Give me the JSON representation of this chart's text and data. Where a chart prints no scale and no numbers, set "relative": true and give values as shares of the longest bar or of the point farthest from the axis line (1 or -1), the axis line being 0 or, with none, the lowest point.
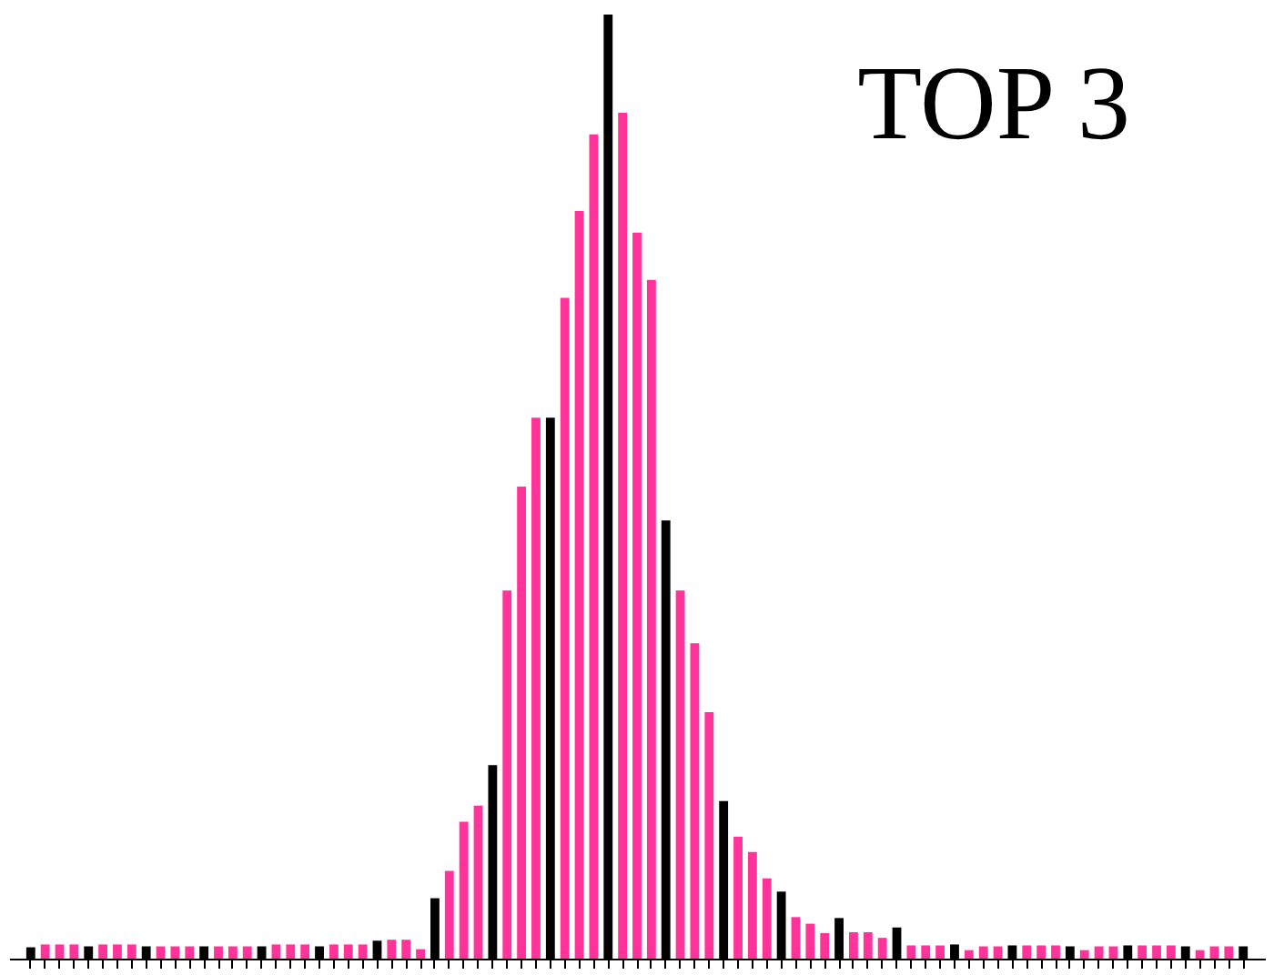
{
  "chart_data": {
    "type": "bar",
    "title": "TOP 3",
    "relative": true,
    "categories": [
      null,
      null,
      null,
      null,
      null,
      null,
      null,
      null,
      null,
      null,
      null,
      null,
      null,
      null,
      null,
      null,
      null,
      null,
      null,
      null,
      null,
      null,
      null,
      null,
      null,
      null,
      null,
      null,
      null,
      null,
      null,
      null,
      null,
      null,
      null,
      null,
      null,
      null,
      null,
      null,
      null,
      null,
      null,
      null,
      null,
      null,
      null,
      null,
      null,
      null,
      null,
      null,
      null,
      null,
      null,
      null,
      null,
      null,
      null,
      null,
      null,
      null,
      null,
      null,
      null,
      null,
      null,
      null,
      null,
      null,
      null,
      null,
      null,
      null,
      null,
      null,
      null,
      null,
      null,
      null,
      null,
      null,
      null,
      null,
      null
    ],
    "values": [
      0.012,
      0.015,
      0.015,
      0.015,
      0.013,
      0.015,
      0.015,
      0.015,
      0.013,
      0.013,
      0.013,
      0.013,
      0.013,
      0.013,
      0.013,
      0.013,
      0.013,
      0.015,
      0.015,
      0.015,
      0.013,
      0.015,
      0.015,
      0.015,
      0.019,
      0.02,
      0.02,
      0.01,
      0.064,
      0.093,
      0.145,
      0.162,
      0.205,
      0.39,
      0.5,
      0.573,
      0.573,
      0.7,
      0.792,
      0.873,
      1,
      0.896,
      0.769,
      0.719,
      0.464,
      0.39,
      0.334,
      0.261,
      0.167,
      0.129,
      0.113,
      0.085,
      0.071,
      0.044,
      0.037,
      0.027,
      0.043,
      0.028,
      0.028,
      0.022,
      0.033,
      0.014,
      0.014,
      0.014,
      0.015,
      0.009,
      0.013,
      0.013,
      0.014,
      0.014,
      0.014,
      0.014,
      0.013,
      0.009,
      0.013,
      0.013,
      0.014,
      0.014,
      0.014,
      0.014,
      0.013,
      0.009,
      0.013,
      0.013,
      0.013
    ],
    "colors": [
      "#000000",
      "#ff3399",
      "#ff3399",
      "#ff3399",
      "#000000",
      "#ff3399",
      "#ff3399",
      "#ff3399",
      "#000000",
      "#ff3399",
      "#ff3399",
      "#ff3399",
      "#000000",
      "#ff3399",
      "#ff3399",
      "#ff3399",
      "#000000",
      "#ff3399",
      "#ff3399",
      "#ff3399",
      "#000000",
      "#ff3399",
      "#ff3399",
      "#ff3399",
      "#000000",
      "#ff3399",
      "#ff3399",
      "#ff3399",
      "#000000",
      "#ff3399",
      "#ff3399",
      "#ff3399",
      "#000000",
      "#ff3399",
      "#ff3399",
      "#ff3399",
      "#000000",
      "#ff3399",
      "#ff3399",
      "#ff3399",
      "#000000",
      "#ff3399",
      "#ff3399",
      "#ff3399",
      "#000000",
      "#ff3399",
      "#ff3399",
      "#ff3399",
      "#000000",
      "#ff3399",
      "#ff3399",
      "#ff3399",
      "#000000",
      "#ff3399",
      "#ff3399",
      "#ff3399",
      "#000000",
      "#ff3399",
      "#ff3399",
      "#ff3399",
      "#000000",
      "#ff3399",
      "#ff3399",
      "#ff3399",
      "#000000",
      "#ff3399",
      "#ff3399",
      "#ff3399",
      "#000000",
      "#ff3399",
      "#ff3399",
      "#ff3399",
      "#000000",
      "#ff3399",
      "#ff3399",
      "#ff3399",
      "#000000",
      "#ff3399",
      "#ff3399",
      "#ff3399",
      "#000000",
      "#ff3399",
      "#ff3399",
      "#ff3399",
      "#000000"
    ]
  }
}
